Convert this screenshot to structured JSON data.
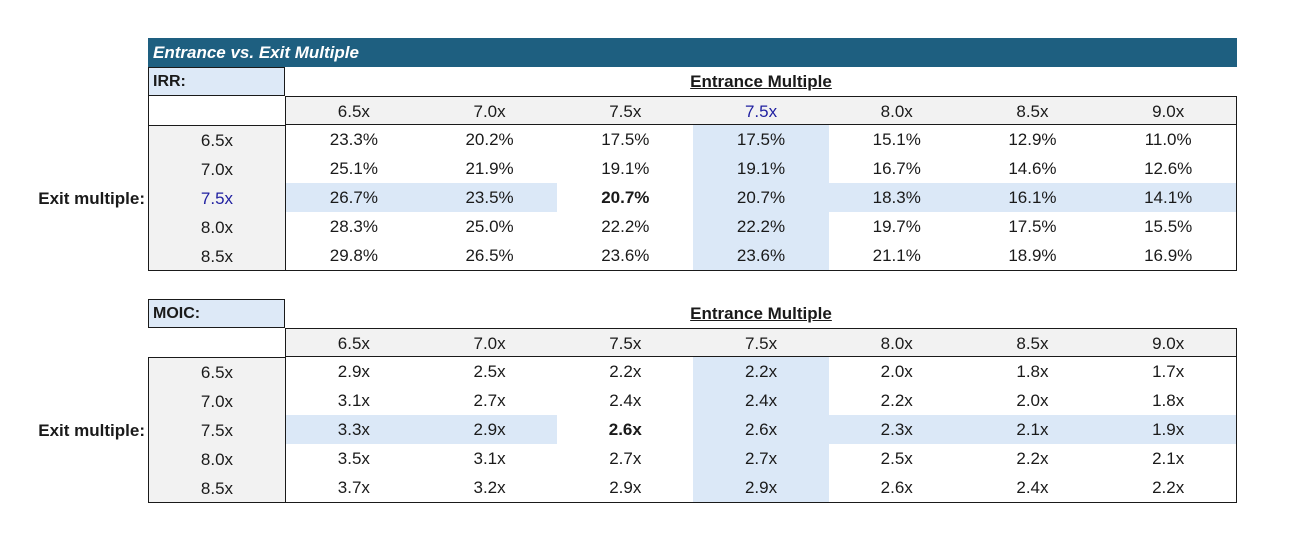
{
  "banner_title": "Entrance vs. Exit Multiple",
  "irr": {
    "label": "IRR:",
    "col_title": "Entrance Multiple",
    "row_title": "Exit multiple:",
    "entrance": [
      "6.5x",
      "7.0x",
      "7.5x",
      "7.5x",
      "8.0x",
      "8.5x",
      "9.0x"
    ],
    "exit": [
      "6.5x",
      "7.0x",
      "7.5x",
      "8.0x",
      "8.5x"
    ],
    "rows": [
      [
        "23.3%",
        "20.2%",
        "17.5%",
        "17.5%",
        "15.1%",
        "12.9%",
        "11.0%"
      ],
      [
        "25.1%",
        "21.9%",
        "19.1%",
        "19.1%",
        "16.7%",
        "14.6%",
        "12.6%"
      ],
      [
        "26.7%",
        "23.5%",
        "20.7%",
        "20.7%",
        "18.3%",
        "16.1%",
        "14.1%"
      ],
      [
        "28.3%",
        "25.0%",
        "22.2%",
        "22.2%",
        "19.7%",
        "17.5%",
        "15.5%"
      ],
      [
        "29.8%",
        "26.5%",
        "23.6%",
        "23.6%",
        "21.1%",
        "18.9%",
        "16.9%"
      ]
    ]
  },
  "moic": {
    "label": "MOIC:",
    "col_title": "Entrance Multiple",
    "row_title": "Exit multiple:",
    "entrance": [
      "6.5x",
      "7.0x",
      "7.5x",
      "7.5x",
      "8.0x",
      "8.5x",
      "9.0x"
    ],
    "exit": [
      "6.5x",
      "7.0x",
      "7.5x",
      "8.0x",
      "8.5x"
    ],
    "rows": [
      [
        "2.9x",
        "2.5x",
        "2.2x",
        "2.2x",
        "2.0x",
        "1.8x",
        "1.7x"
      ],
      [
        "3.1x",
        "2.7x",
        "2.4x",
        "2.4x",
        "2.2x",
        "2.0x",
        "1.8x"
      ],
      [
        "3.3x",
        "2.9x",
        "2.6x",
        "2.6x",
        "2.3x",
        "2.1x",
        "1.9x"
      ],
      [
        "3.5x",
        "3.1x",
        "2.7x",
        "2.7x",
        "2.5x",
        "2.2x",
        "2.1x"
      ],
      [
        "3.7x",
        "3.2x",
        "2.9x",
        "2.9x",
        "2.6x",
        "2.4x",
        "2.2x"
      ]
    ]
  },
  "colors": {
    "banner": "#1e5f80",
    "highlight": "#dbe8f7",
    "selected_text": "#1f1fa0"
  }
}
